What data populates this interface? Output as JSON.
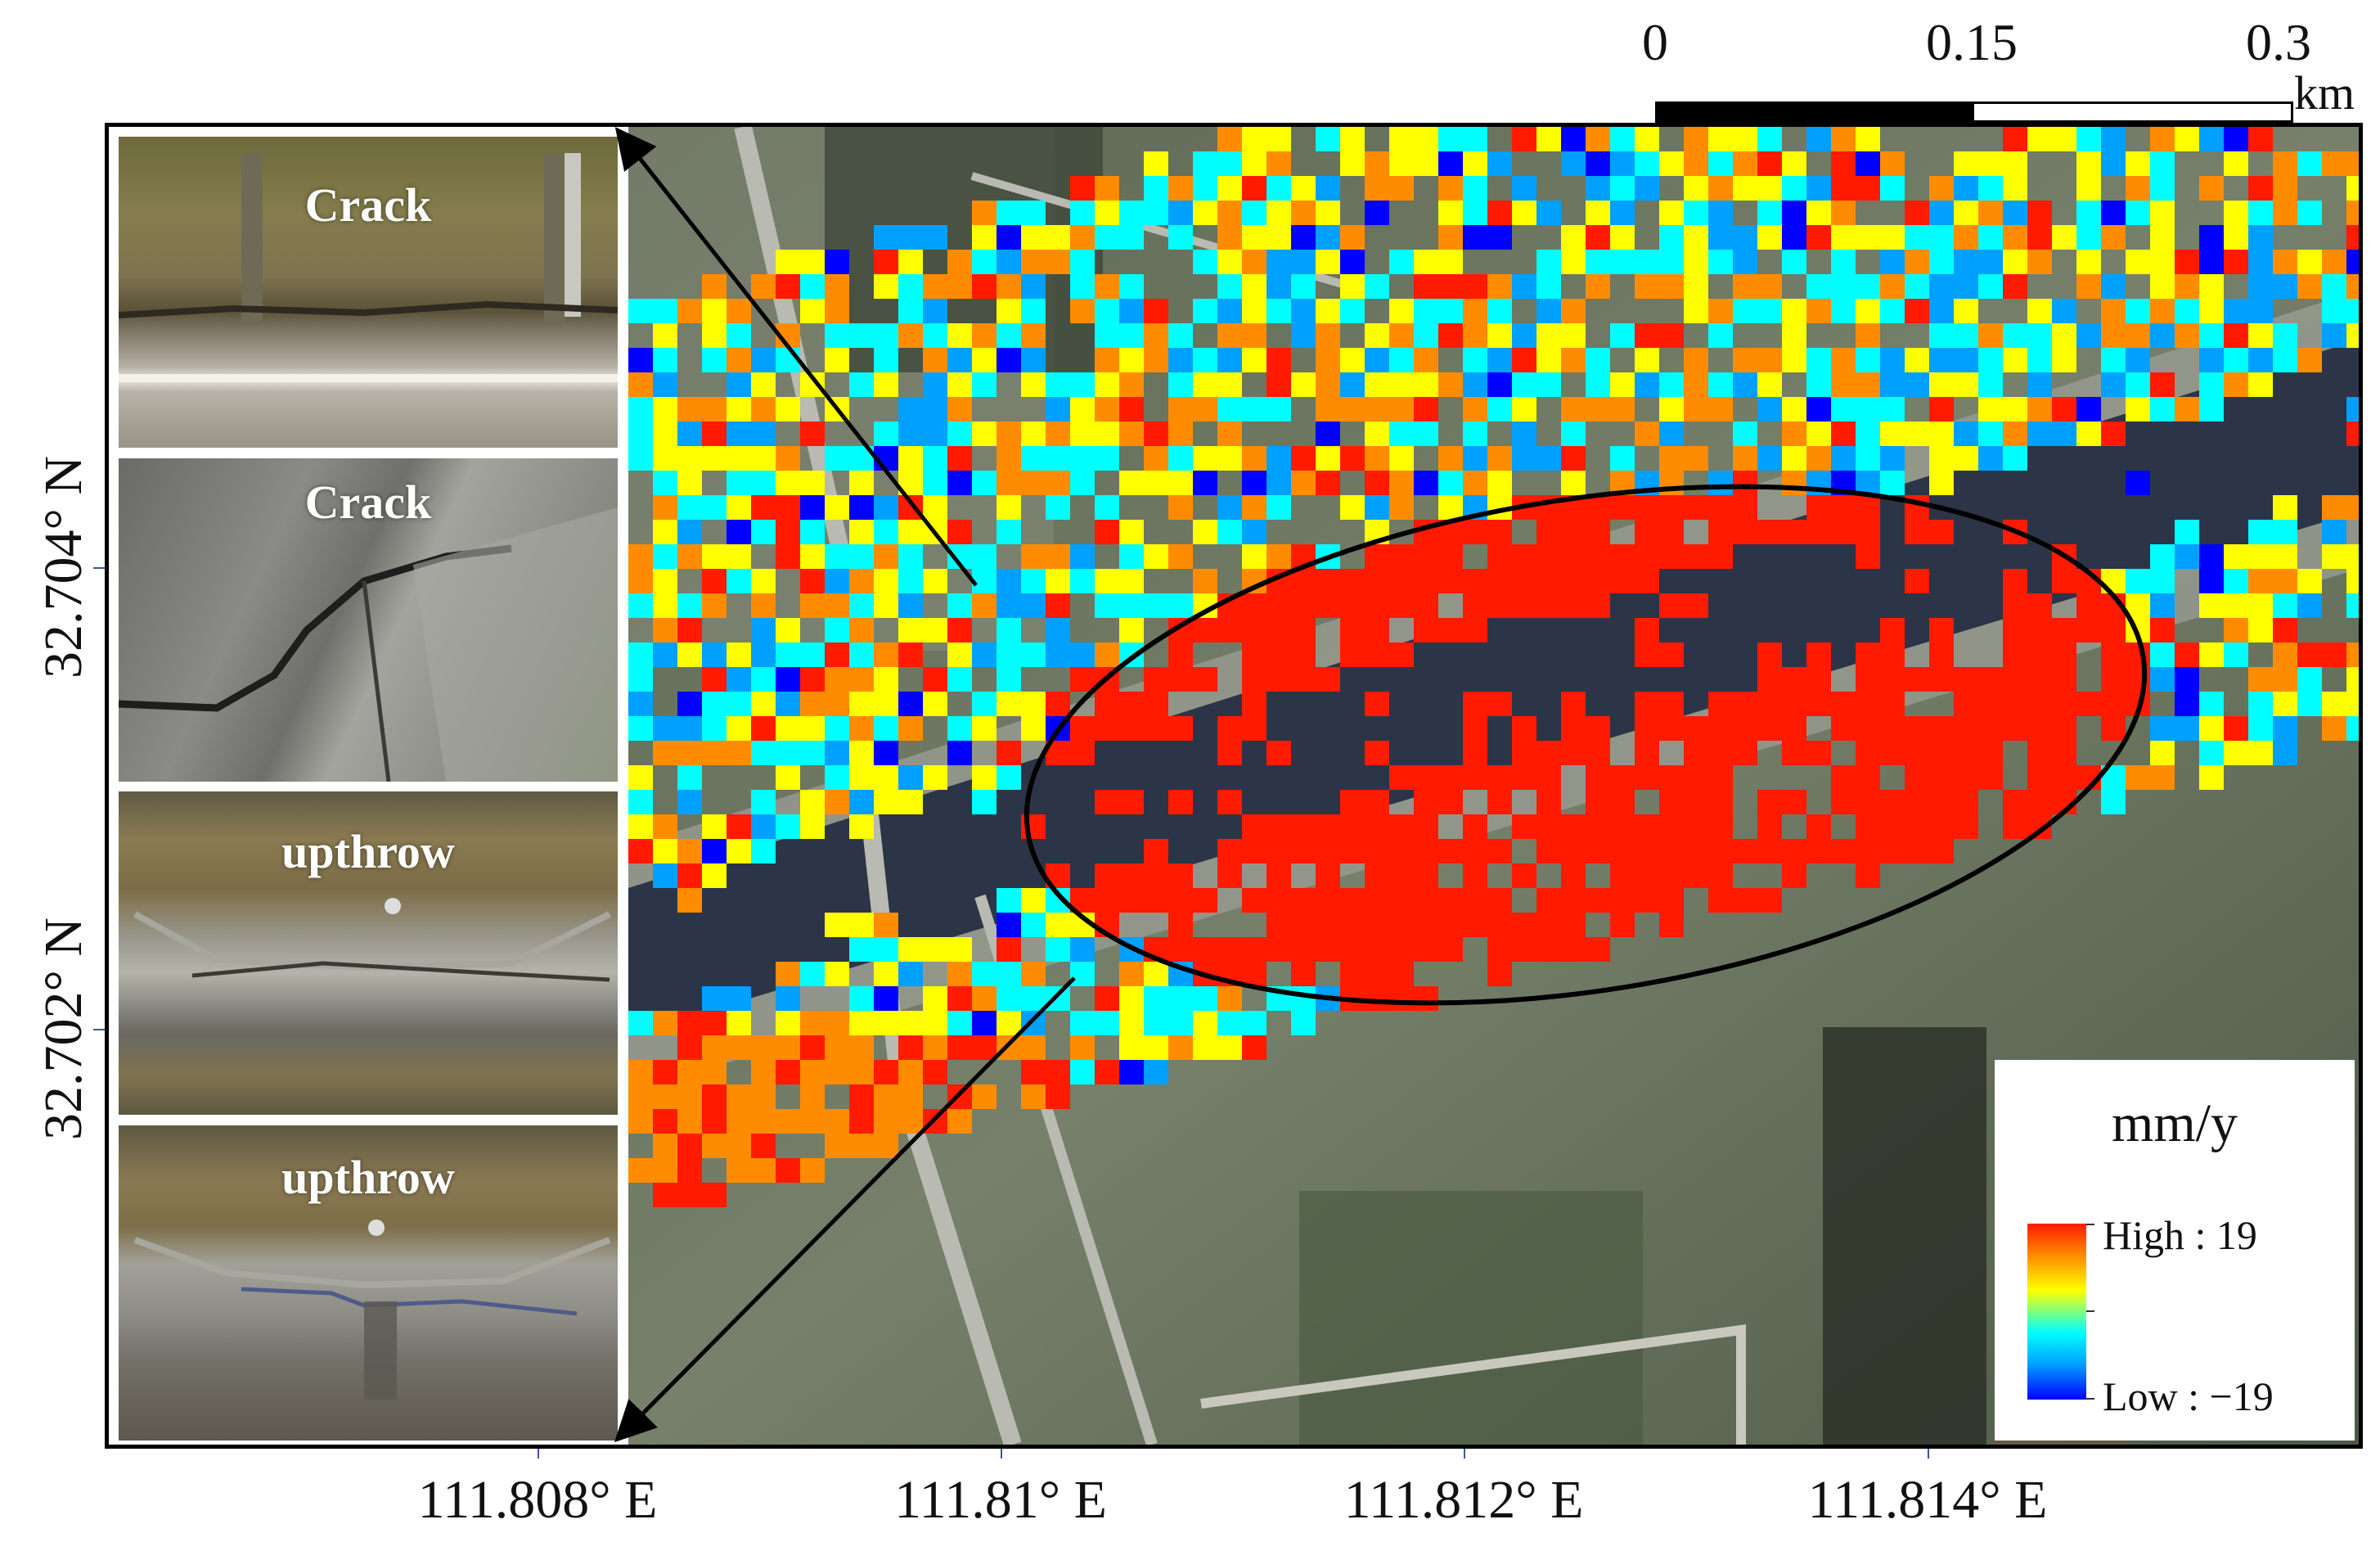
{
  "scale_bar": {
    "ticks": [
      "0",
      "0.15",
      "0.3"
    ],
    "unit": "km"
  },
  "photos": [
    {
      "label": "Crack"
    },
    {
      "label": "Crack"
    },
    {
      "label": "upthrow"
    },
    {
      "label": "upthrow"
    }
  ],
  "legend": {
    "title": "mm/y",
    "high_label": "High : 19",
    "low_label": "Low : −19",
    "high_value": 19,
    "low_value": -19,
    "ramp_colors": [
      "#ff1a00",
      "#ff8c00",
      "#ffff00",
      "#00ffff",
      "#00a0ff",
      "#0000ff"
    ]
  },
  "axes": {
    "x_ticks": [
      "111.808° E",
      "111.81° E",
      "111.812° E",
      "111.814° E"
    ],
    "y_ticks": [
      "32.704° N",
      "32.702° N"
    ]
  },
  "colors": {
    "frame": "#000000",
    "highlight_ellipse": "#000000"
  }
}
